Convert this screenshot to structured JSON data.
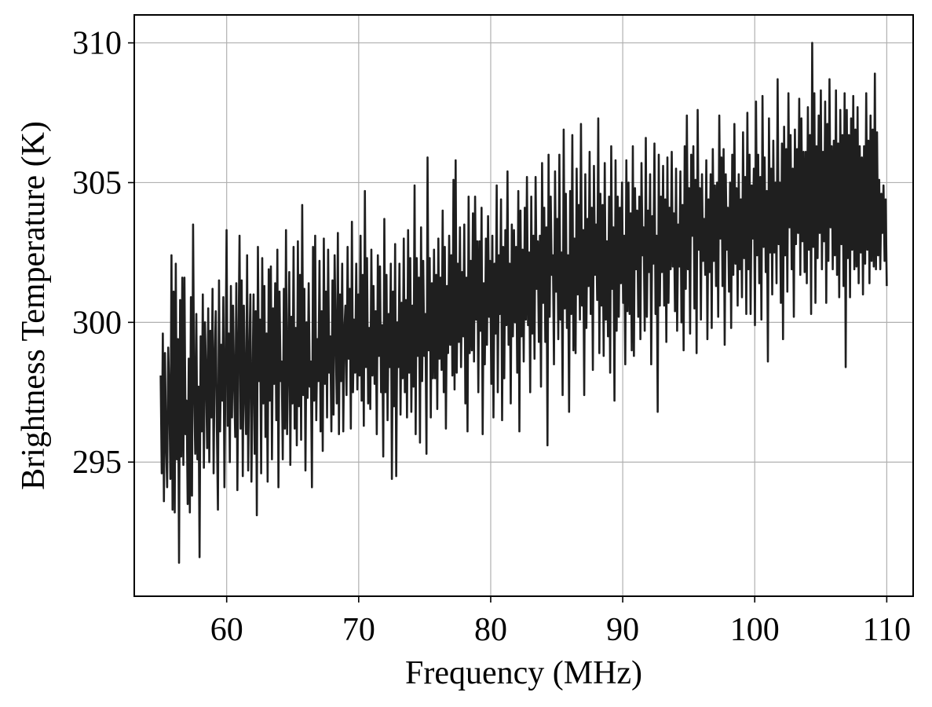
{
  "chart_data": {
    "type": "line",
    "xlabel": "Frequency (MHz)",
    "ylabel": "Brightness Temperature (K)",
    "xlim": [
      53,
      112
    ],
    "ylim": [
      290.2,
      311.0
    ],
    "xticks": [
      60,
      70,
      80,
      90,
      100,
      110
    ],
    "yticks": [
      295,
      300,
      305,
      310
    ],
    "grid": true,
    "legend": "none",
    "colors": {
      "line": "#1f1f1f",
      "grid": "#b0b0b0",
      "axes": "#000000"
    },
    "series": [
      {
        "x_start": 55.0,
        "x_end": 110.0,
        "x_step": 0.1,
        "values": [
          298.1,
          294.6,
          299.6,
          293.6,
          298.9,
          295.7,
          294.1,
          299.1,
          297.4,
          294.4,
          302.4,
          293.3,
          301.1,
          293.2,
          302.1,
          295.1,
          299.4,
          291.4,
          300.8,
          295.2,
          301.6,
          294.9,
          301.6,
          296.0,
          297.2,
          293.5,
          298.7,
          293.2,
          300.9,
          293.8,
          303.5,
          297.6,
          295.3,
          300.3,
          295.1,
          297.7,
          291.6,
          299.5,
          296.1,
          301.0,
          294.8,
          300.0,
          298.2,
          295.5,
          300.5,
          295.0,
          299.7,
          296.6,
          301.2,
          294.6,
          298.7,
          300.4,
          296.3,
          293.3,
          301.5,
          296.1,
          299.2,
          297.2,
          300.9,
          294.1,
          298.2,
          303.3,
          296.3,
          299.6,
          295.0,
          301.3,
          296.6,
          300.6,
          297.8,
          295.9,
          301.4,
          294.0,
          299.1,
          303.1,
          296.2,
          301.5,
          294.5,
          300.6,
          297.6,
          296.0,
          302.4,
          294.7,
          298.6,
          301.0,
          294.3,
          297.8,
          301.0,
          295.3,
          300.4,
          293.1,
          302.7,
          297.9,
          300.1,
          294.6,
          302.3,
          297.1,
          301.3,
          295.9,
          299.6,
          294.3,
          301.9,
          297.2,
          302.0,
          295.1,
          300.5,
          297.8,
          301.4,
          296.5,
          302.6,
          294.1,
          301.1,
          297.9,
          298.6,
          295.1,
          301.2,
          296.2,
          303.3,
          296.0,
          298.5,
          301.8,
          294.9,
          300.2,
          297.1,
          302.7,
          296.2,
          299.8,
          295.6,
          302.9,
          297.0,
          301.7,
          295.8,
          304.2,
          297.4,
          301.2,
          294.7,
          300.0,
          297.3,
          301.4,
          297.7,
          298.6,
          294.1,
          302.7,
          297.2,
          303.1,
          296.5,
          299.4,
          297.9,
          302.2,
          296.1,
          300.4,
          295.4,
          303.0,
          297.8,
          301.1,
          296.6,
          302.6,
          298.2,
          299.5,
          296.1,
          301.5,
          296.7,
          302.4,
          299.4,
          297.1,
          303.2,
          296.0,
          301.0,
          297.9,
          302.1,
          296.1,
          299.7,
          300.6,
          297.4,
          302.7,
          298.7,
          301.2,
          296.2,
          303.6,
          297.5,
          300.1,
          298.2,
          302.1,
          297.6,
          301.0,
          298.1,
          303.1,
          297.2,
          301.7,
          296.3,
          304.7,
          298.4,
          302.3,
          297.1,
          299.8,
          296.9,
          302.6,
          298.1,
          301.3,
          297.8,
          300.4,
          296.0,
          302.4,
          298.8,
          302.0,
          297.5,
          299.9,
          295.2,
          303.7,
          297.5,
          301.7,
          296.5,
          300.3,
          298.4,
          302.1,
          294.4,
          301.1,
          297.0,
          302.8,
          294.5,
          300.0,
          298.4,
          302.1,
          296.7,
          300.7,
          298.0,
          303.0,
          297.5,
          300.8,
          296.6,
          303.3,
          298.2,
          302.3,
          296.8,
          300.6,
          297.7,
          304.9,
          296.0,
          302.3,
          298.8,
          301.6,
          295.7,
          303.4,
          297.9,
          302.2,
          298.8,
          300.3,
          295.3,
          305.9,
          299.0,
          302.3,
          296.6,
          301.4,
          298.0,
          302.6,
          298.0,
          301.7,
          296.9,
          303.0,
          298.7,
          301.6,
          298.3,
          304.0,
          297.5,
          302.7,
          296.2,
          301.3,
          298.9,
          303.1,
          299.2,
          302.4,
          298.1,
          305.1,
          297.6,
          305.8,
          298.2,
          302.1,
          299.3,
          303.4,
          298.4,
          301.8,
          299.5,
          303.5,
          297.1,
          301.6,
          296.1,
          304.5,
          298.9,
          302.2,
          299.0,
          303.9,
          298.6,
          304.5,
          300.1,
          302.9,
          297.5,
          302.9,
          299.7,
          304.1,
          296.0,
          301.4,
          298.5,
          303.0,
          299.2,
          303.8,
          300.2,
          302.2,
          297.8,
          303.1,
          296.6,
          302.1,
          299.6,
          304.9,
          297.5,
          302.4,
          300.3,
          304.4,
          296.5,
          302.7,
          298.0,
          303.3,
          299.9,
          305.4,
          299.2,
          302.1,
          297.1,
          303.5,
          299.5,
          303.3,
          300.0,
          302.7,
          298.2,
          304.7,
          296.1,
          304.0,
          299.5,
          302.6,
          298.6,
          304.1,
          300.1,
          305.2,
          299.9,
          302.5,
          297.5,
          304.5,
          299.6,
          303.1,
          298.7,
          305.2,
          301.2,
          302.9,
          299.3,
          303.1,
          297.7,
          305.7,
          300.7,
          304.1,
          299.3,
          303.4,
          295.6,
          306.0,
          300.2,
          304.5,
          301.7,
          302.4,
          298.5,
          305.4,
          301.1,
          303.7,
          299.4,
          306.0,
          300.1,
          302.5,
          297.4,
          306.9,
          300.5,
          304.6,
          299.8,
          302.4,
          296.8,
          304.7,
          300.3,
          306.7,
          299.0,
          303.0,
          298.9,
          305.5,
          301.0,
          304.2,
          300.1,
          307.1,
          300.6,
          303.3,
          297.4,
          305.3,
          299.8,
          303.7,
          301.3,
          306.1,
          300.3,
          304.1,
          298.3,
          305.6,
          301.7,
          303.5,
          300.8,
          307.3,
          298.9,
          304.6,
          300.6,
          304.2,
          298.8,
          305.7,
          300.1,
          302.9,
          299.5,
          304.5,
          298.2,
          306.3,
          301.2,
          303.4,
          297.2,
          305.8,
          299.7,
          304.5,
          300.2,
          304.1,
          301.4,
          305.0,
          300.7,
          303.1,
          298.5,
          305.8,
          300.4,
          305.0,
          300.3,
          303.9,
          299.0,
          306.3,
          298.8,
          304.8,
          301.9,
          304.0,
          300.2,
          304.5,
          299.4,
          305.7,
          302.4,
          303.4,
          299.7,
          306.6,
          300.2,
          304.0,
          301.8,
          305.3,
          298.5,
          303.8,
          302.1,
          306.4,
          300.3,
          303.1,
          296.8,
          306.0,
          300.6,
          304.5,
          301.8,
          305.6,
          300.6,
          304.4,
          299.3,
          305.9,
          300.7,
          304.1,
          301.9,
          306.1,
          302.0,
          303.9,
          300.4,
          305.5,
          299.7,
          303.5,
          302.0,
          305.4,
          300.0,
          304.2,
          299.0,
          306.3,
          301.2,
          307.4,
          301.9,
          304.8,
          299.6,
          306.0,
          303.1,
          306.3,
          300.5,
          305.1,
          298.9,
          307.6,
          302.6,
          304.8,
          300.1,
          305.3,
          302.2,
          303.7,
          301.7,
          305.8,
          299.4,
          304.4,
          301.8,
          305.3,
          299.8,
          306.2,
          302.2,
          304.9,
          301.3,
          305.0,
          300.2,
          307.4,
          303.0,
          305.9,
          301.3,
          306.2,
          299.2,
          305.3,
          302.6,
          304.1,
          301.1,
          305.0,
          299.8,
          306.0,
          301.7,
          307.1,
          302.1,
          304.8,
          300.6,
          305.3,
          301.9,
          304.4,
          300.9,
          306.8,
          302.3,
          305.2,
          300.3,
          307.5,
          301.9,
          306.0,
          300.3,
          304.9,
          303.0,
          305.5,
          299.9,
          307.9,
          302.4,
          306.0,
          301.4,
          305.2,
          300.1,
          308.1,
          302.7,
          305.9,
          301.8,
          304.7,
          298.6,
          307.3,
          302.5,
          305.5,
          301.0,
          306.5,
          302.5,
          305.0,
          301.4,
          308.7,
          302.8,
          305.0,
          300.7,
          306.4,
          299.4,
          307.0,
          302.4,
          306.2,
          301.1,
          308.2,
          303.4,
          306.7,
          301.9,
          305.5,
          300.2,
          306.9,
          302.8,
          306.2,
          303.2,
          308.0,
          301.7,
          307.3,
          302.9,
          306.1,
          301.8,
          306.1,
          301.4,
          307.7,
          302.6,
          306.7,
          300.3,
          310.0,
          302.7,
          308.2,
          300.7,
          306.3,
          302.3,
          307.4,
          303.2,
          308.3,
          301.9,
          306.1,
          302.9,
          307.9,
          300.7,
          307.1,
          302.2,
          308.7,
          303.4,
          306.3,
          301.9,
          306.5,
          302.4,
          308.3,
          301.7,
          306.4,
          300.9,
          307.6,
          302.8,
          306.7,
          301.3,
          308.2,
          298.4,
          307.6,
          302.3,
          306.7,
          300.9,
          307.3,
          302.6,
          308.1,
          301.9,
          306.9,
          302.0,
          307.7,
          301.4,
          306.3,
          302.5,
          305.9,
          301.0,
          306.3,
          302.1,
          308.2,
          302.6,
          306.5,
          301.4,
          307.4,
          302.2,
          306.9,
          302.0,
          308.9,
          301.9,
          306.8,
          302.4,
          305.1,
          301.9,
          304.6,
          303.2,
          304.9,
          302.2,
          304.4,
          301.3
        ]
      }
    ]
  }
}
